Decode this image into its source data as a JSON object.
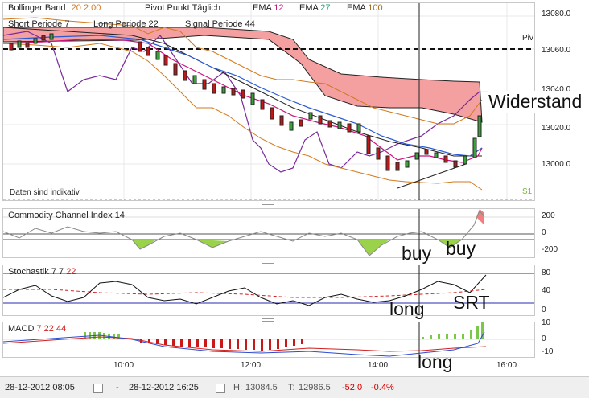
{
  "main_legend": {
    "bollinger": {
      "label": "Bollinger Band",
      "p1": "20",
      "p2": "2.00"
    },
    "pivot": "Pivot Punkt Täglich",
    "ema1": {
      "label": "EMA",
      "value": "12"
    },
    "ema2": {
      "label": "EMA",
      "value": "27"
    },
    "ema3": {
      "label": "EMA",
      "value": "100"
    },
    "short": {
      "label": "Short Periode",
      "value": "7"
    },
    "long": {
      "label": "Long Periode",
      "value": "22"
    },
    "signal": {
      "label": "Signal Periode",
      "value": "44"
    },
    "disclaimer": "Daten sind indikativ",
    "piv_label": "Piv",
    "s1_label": "S1"
  },
  "price_axis": [
    "13080.0",
    "13060.0",
    "13040.0",
    "13020.0",
    "13000.0"
  ],
  "cci": {
    "label": "Commodity Channel Index",
    "value": "14",
    "ticks": [
      "200",
      "0",
      "-200"
    ]
  },
  "stoch": {
    "label": "Stochastik",
    "k": "7",
    "d": "7",
    "smooth": "22",
    "ticks": [
      "80",
      "40",
      "0"
    ]
  },
  "macd": {
    "label": "MACD",
    "p1": "7",
    "p2": "22",
    "p3": "44",
    "ticks": [
      "10",
      "0",
      "-10"
    ]
  },
  "time_axis": [
    "10:00",
    "12:00",
    "14:00",
    "16:00"
  ],
  "annotations": {
    "widerstand": "Widerstand",
    "buy1": "buy",
    "buy2": "buy",
    "long1": "long",
    "srt": "SRT",
    "long2": "long"
  },
  "footer": {
    "from": "28-12-2012 08:05",
    "dash": "-",
    "to": "28-12-2012 16:25",
    "high_label": "H:",
    "high": "13084.5",
    "low_label": "T:",
    "low": "12986.5",
    "change": "-52.0",
    "change_pct": "-0.4%"
  },
  "colors": {
    "bollinger": "#d27a1e",
    "ema12": "#c8147a",
    "ema27": "#2aa07a",
    "ema100": "#a0701e",
    "pivot": "#7a2a9a",
    "cloud": "#f08080",
    "negative": "#d00000",
    "positive": "#2a9a2a"
  }
}
